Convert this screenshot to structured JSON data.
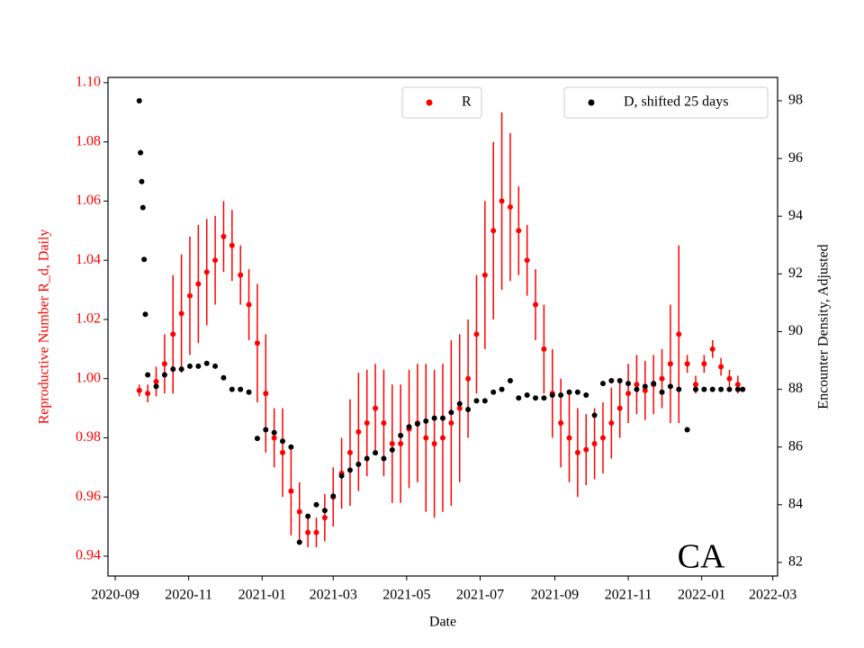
{
  "chart_data": {
    "type": "errorbar_dual",
    "xlabel": "Date",
    "ylabel": "Reproductive Number R_d, Daily",
    "y2label": "Encounter Density, Adjusted",
    "annotation": "CA",
    "xlim": [
      "2020-08-26",
      "2022-03-05"
    ],
    "xticks": [
      {
        "value": "2020-09-01",
        "label": "2020-09"
      },
      {
        "value": "2020-11-01",
        "label": "2020-11"
      },
      {
        "value": "2021-01-01",
        "label": "2021-01"
      },
      {
        "value": "2021-03-01",
        "label": "2021-03"
      },
      {
        "value": "2021-05-01",
        "label": "2021-05"
      },
      {
        "value": "2021-07-01",
        "label": "2021-07"
      },
      {
        "value": "2021-09-01",
        "label": "2021-09"
      },
      {
        "value": "2021-11-01",
        "label": "2021-11"
      },
      {
        "value": "2022-01-01",
        "label": "2022-01"
      },
      {
        "value": "2022-03-01",
        "label": "2022-03"
      }
    ],
    "ylim": [
      0.9333,
      1.1018
    ],
    "yticks": [
      0.94,
      0.96,
      0.98,
      {
        "value": 1,
        "label": "1.00"
      },
      1.02,
      1.04,
      1.06,
      1.08,
      {
        "value": 1.1,
        "label": "1.10"
      }
    ],
    "y2lim": [
      81.53,
      98.81
    ],
    "y2ticks": [
      82,
      84,
      86,
      88,
      90,
      92,
      94,
      96,
      98
    ],
    "series": [
      {
        "name": "R",
        "color": "#ff0000",
        "axis": "y",
        "x": [
          "2020-09-21",
          "2020-09-28",
          "2020-10-05",
          "2020-10-12",
          "2020-10-19",
          "2020-10-26",
          "2020-11-02",
          "2020-11-09",
          "2020-11-16",
          "2020-11-23",
          "2020-11-30",
          "2020-12-07",
          "2020-12-14",
          "2020-12-21",
          "2020-12-28",
          "2021-01-04",
          "2021-01-11",
          "2021-01-18",
          "2021-01-25",
          "2021-02-01",
          "2021-02-08",
          "2021-02-15",
          "2021-02-22",
          "2021-03-01",
          "2021-03-08",
          "2021-03-15",
          "2021-03-22",
          "2021-03-29",
          "2021-04-05",
          "2021-04-12",
          "2021-04-19",
          "2021-04-26",
          "2021-05-03",
          "2021-05-10",
          "2021-05-17",
          "2021-05-24",
          "2021-05-31",
          "2021-06-07",
          "2021-06-14",
          "2021-06-21",
          "2021-06-28",
          "2021-07-05",
          "2021-07-12",
          "2021-07-19",
          "2021-07-26",
          "2021-08-02",
          "2021-08-09",
          "2021-08-16",
          "2021-08-23",
          "2021-08-30",
          "2021-09-06",
          "2021-09-13",
          "2021-09-20",
          "2021-09-27",
          "2021-10-04",
          "2021-10-11",
          "2021-10-18",
          "2021-10-25",
          "2021-11-01",
          "2021-11-08",
          "2021-11-15",
          "2021-11-22",
          "2021-11-29",
          "2021-12-06",
          "2021-12-13",
          "2021-12-20",
          "2021-12-27",
          "2022-01-03",
          "2022-01-10",
          "2022-01-17",
          "2022-01-24",
          "2022-01-31"
        ],
        "values": [
          0.996,
          0.995,
          0.999,
          1.005,
          1.015,
          1.022,
          1.028,
          1.032,
          1.036,
          1.04,
          1.048,
          1.045,
          1.035,
          1.025,
          1.012,
          0.995,
          0.98,
          0.975,
          0.962,
          0.955,
          0.948,
          0.948,
          0.953,
          0.96,
          0.968,
          0.975,
          0.982,
          0.985,
          0.99,
          0.985,
          0.978,
          0.978,
          0.983,
          0.985,
          0.98,
          0.978,
          0.98,
          0.985,
          0.99,
          1.0,
          1.015,
          1.035,
          1.05,
          1.06,
          1.058,
          1.05,
          1.04,
          1.025,
          1.01,
          0.995,
          0.985,
          0.98,
          0.975,
          0.976,
          0.978,
          0.98,
          0.985,
          0.99,
          0.995,
          0.998,
          0.996,
          0.998,
          1.0,
          1.005,
          1.015,
          1.005,
          0.998,
          1.005,
          1.01,
          1.004,
          1.0,
          0.998
        ],
        "errors": [
          0.002,
          0.003,
          0.005,
          0.01,
          0.02,
          0.02,
          0.02,
          0.02,
          0.018,
          0.015,
          0.012,
          0.012,
          0.01,
          0.012,
          0.02,
          0.02,
          0.01,
          0.015,
          0.015,
          0.01,
          0.005,
          0.005,
          0.008,
          0.01,
          0.012,
          0.018,
          0.02,
          0.018,
          0.015,
          0.018,
          0.02,
          0.02,
          0.02,
          0.02,
          0.025,
          0.025,
          0.025,
          0.028,
          0.025,
          0.02,
          0.02,
          0.025,
          0.03,
          0.03,
          0.025,
          0.015,
          0.012,
          0.012,
          0.015,
          0.015,
          0.015,
          0.015,
          0.015,
          0.012,
          0.012,
          0.012,
          0.012,
          0.01,
          0.01,
          0.01,
          0.01,
          0.01,
          0.01,
          0.02,
          0.03,
          0.003,
          0.003,
          0.003,
          0.003,
          0.003,
          0.003,
          0.003
        ]
      },
      {
        "name": "D, shifted 25 days",
        "color": "#000000",
        "axis": "y2",
        "x": [
          "2020-09-21",
          "2020-09-22",
          "2020-09-23",
          "2020-09-24",
          "2020-09-25",
          "2020-09-26",
          "2020-09-28",
          "2020-10-05",
          "2020-10-12",
          "2020-10-19",
          "2020-10-26",
          "2020-11-02",
          "2020-11-09",
          "2020-11-16",
          "2020-11-23",
          "2020-11-30",
          "2020-12-07",
          "2020-12-14",
          "2020-12-21",
          "2020-12-28",
          "2021-01-04",
          "2021-01-11",
          "2021-01-18",
          "2021-01-25",
          "2021-02-01",
          "2021-02-08",
          "2021-02-15",
          "2021-02-22",
          "2021-03-01",
          "2021-03-08",
          "2021-03-15",
          "2021-03-22",
          "2021-03-29",
          "2021-04-05",
          "2021-04-12",
          "2021-04-19",
          "2021-04-26",
          "2021-05-03",
          "2021-05-10",
          "2021-05-17",
          "2021-05-24",
          "2021-05-31",
          "2021-06-07",
          "2021-06-14",
          "2021-06-21",
          "2021-06-28",
          "2021-07-05",
          "2021-07-12",
          "2021-07-19",
          "2021-07-26",
          "2021-08-02",
          "2021-08-09",
          "2021-08-16",
          "2021-08-23",
          "2021-08-30",
          "2021-09-06",
          "2021-09-13",
          "2021-09-20",
          "2021-09-27",
          "2021-10-04",
          "2021-10-11",
          "2021-10-18",
          "2021-10-25",
          "2021-11-01",
          "2021-11-08",
          "2021-11-15",
          "2021-11-22",
          "2021-11-29",
          "2021-12-06",
          "2021-12-13",
          "2021-12-20",
          "2021-12-27",
          "2022-01-03",
          "2022-01-10",
          "2022-01-17",
          "2022-01-24",
          "2022-01-31",
          "2022-02-04"
        ],
        "values": [
          98,
          96.2,
          95.2,
          94.3,
          92.5,
          90.6,
          88.5,
          88.1,
          88.5,
          88.7,
          88.7,
          88.8,
          88.8,
          88.9,
          88.8,
          88.4,
          88.0,
          88.0,
          87.9,
          86.3,
          86.6,
          86.5,
          86.2,
          86.0,
          82.7,
          83.6,
          84.0,
          83.8,
          84.3,
          85.0,
          85.2,
          85.4,
          85.6,
          85.8,
          85.6,
          85.9,
          86.4,
          86.7,
          86.8,
          86.9,
          87.0,
          87.0,
          87.2,
          87.5,
          87.3,
          87.6,
          87.6,
          87.9,
          88.0,
          88.3,
          87.7,
          87.8,
          87.7,
          87.7,
          87.8,
          87.8,
          87.9,
          87.9,
          87.8,
          87.1,
          88.2,
          88.3,
          88.3,
          88.2,
          88.0,
          88.1,
          88.2,
          87.9,
          88.1,
          88.0,
          86.6,
          88.0,
          88.0,
          88.0,
          88.0,
          88.0,
          88.0,
          88.0
        ]
      }
    ]
  }
}
